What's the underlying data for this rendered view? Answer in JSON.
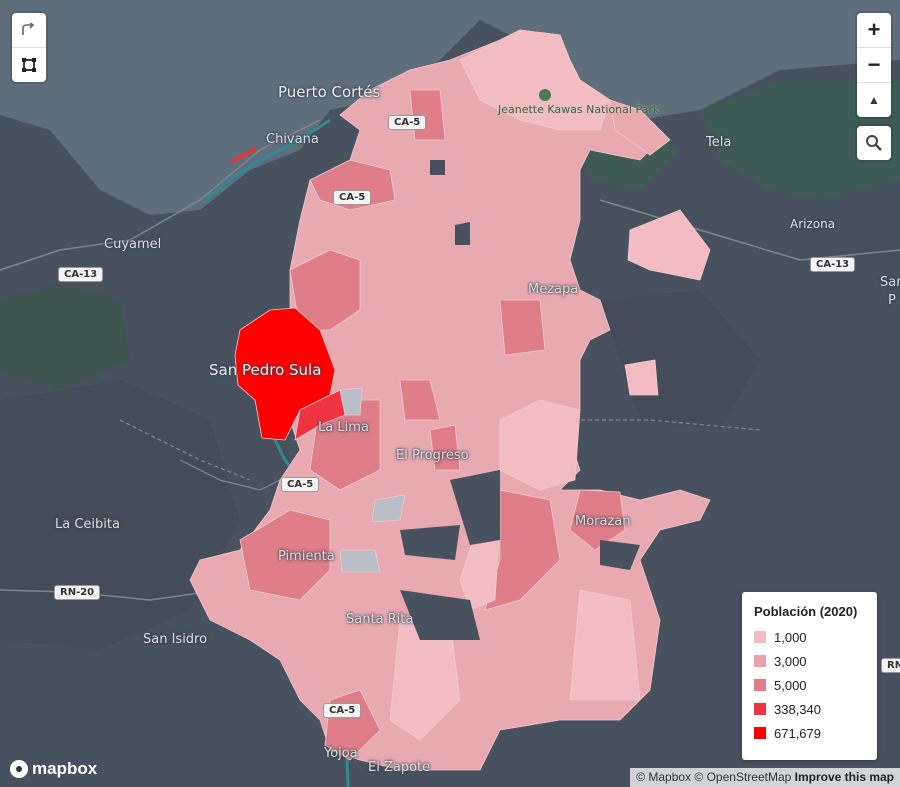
{
  "controls": {
    "rotate_icon": "rotate-icon",
    "box_select_icon": "box-select-icon",
    "zoom_in": "+",
    "zoom_out": "−",
    "compass": "▲",
    "search_icon": "search-icon"
  },
  "legend": {
    "title": "Población (2020)",
    "items": [
      {
        "label": "1,000",
        "color": "#f2bcc2"
      },
      {
        "label": "3,000",
        "color": "#e9a1aa"
      },
      {
        "label": "5,000",
        "color": "#df7d88"
      },
      {
        "label": "338,340",
        "color": "#ef3340"
      },
      {
        "label": "671,679",
        "color": "#ff0000"
      }
    ]
  },
  "places": {
    "puerto_cortes": "Puerto Cortés",
    "chivana": "Chivana",
    "cuyamel": "Cuyamel",
    "tela": "Tela",
    "arizona": "Arizona",
    "mezapa": "Mezapa",
    "san_pedro_sula": "San Pedro Sula",
    "la_lima": "La Lima",
    "el_progreso": "El Progreso",
    "la_ceibita": "La Ceibita",
    "morazan": "Morazan",
    "pimienta": "Pimienta",
    "san_isidro": "San Isidro",
    "santa_rita": "Santa Rita",
    "yojoa": "Yojoa",
    "el_zapote": "El Zapote",
    "park": "Jeanette Kawas National Park",
    "edge_right_1": "San",
    "edge_right_2": "P"
  },
  "roads": {
    "ca5": "CA-5",
    "ca13": "CA-13",
    "rn20": "RN-20",
    "rn_edge": "RN"
  },
  "attribution": {
    "mapbox": "© Mapbox",
    "osm": "© OpenStreetMap",
    "improve": "Improve this map"
  },
  "logo": "mapbox",
  "colors": {
    "water": "#5d6c78",
    "land": "#48525f",
    "forest": "#3e5a56"
  }
}
